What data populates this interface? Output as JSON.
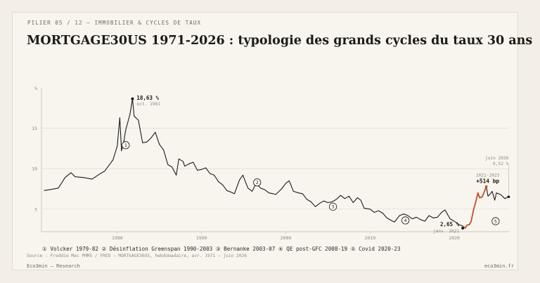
{
  "header": {
    "kicker": "PILIER 05 / 12 — IMMOBILIER & CYCLES DE TAUX",
    "title": "MORTGAGE30US 1971-2026 : typologie des grands cycles du taux 30 ans"
  },
  "legend_text": "① Volcker 1979-82 ② Désinflation Greenspan 1990-2003 ③ Bernanke 2003-07 ④ QE post-GFC 2008-19 ⑤ Covid 2020-23",
  "source": "Source : Freddie Mac PMMS / FRED — MORTGAGE30US, hebdomadaire, avr. 1971 – juin 2026",
  "footer": {
    "left": "Eco3min — Research",
    "right": "eco3min.fr"
  },
  "colors": {
    "line": "#1a1a1a",
    "highlight": "#c0502a",
    "grid": "#dcd6ca",
    "background": "#f8f5ee"
  },
  "chart_data": {
    "type": "line",
    "series": [
      {
        "x": [
          1971.3,
          1972.0,
          1973.0,
          1973.8,
          1974.5,
          1975.0,
          1976.0,
          1977.0,
          1978.0,
          1978.5,
          1979.0,
          1979.5,
          1980.0,
          1980.3,
          1980.5,
          1980.8,
          1981.0,
          1981.5,
          1981.8,
          1982.0,
          1982.5,
          1983.0,
          1983.5,
          1984.0,
          1984.5,
          1985.0,
          1985.5,
          1986.0,
          1986.5,
          1987.0,
          1987.3,
          1987.8,
          1988.0,
          1988.5,
          1989.0,
          1989.5,
          1990.0,
          1990.5,
          1991.0,
          1991.5,
          1992.0,
          1992.5,
          1993.0,
          1993.5,
          1993.9,
          1994.5,
          1994.9,
          1995.5,
          1996.0,
          1996.5,
          1997.0,
          1997.5,
          1998.0,
          1998.5,
          1998.8,
          1999.5,
          2000.0,
          2000.4,
          2000.9,
          2001.5,
          2002.0,
          2002.5,
          2003.0,
          2003.5,
          2004.0,
          2004.5,
          2005.0,
          2005.5,
          2006.0,
          2006.5,
          2007.0,
          2007.5,
          2008.0,
          2008.5,
          2008.9,
          2009.3,
          2010.0,
          2010.5,
          2011.0,
          2011.5,
          2012.0,
          2012.5,
          2012.9,
          2013.5,
          2014.0,
          2014.5,
          2015.0,
          2015.5,
          2016.0,
          2016.5,
          2017.0,
          2017.5,
          2018.0,
          2018.5,
          2018.9,
          2019.5,
          2020.0,
          2020.5,
          2021.0,
          2021.3,
          2021.5,
          2021.8,
          2022.0,
          2022.3,
          2022.5,
          2022.8,
          2023.0,
          2023.3,
          2023.5,
          2023.8,
          2024.0,
          2024.3,
          2024.5,
          2024.8,
          2025.0,
          2025.5,
          2026.0,
          2026.45
        ],
        "y": [
          7.3,
          7.4,
          7.6,
          8.9,
          9.5,
          9.0,
          8.9,
          8.7,
          9.4,
          9.7,
          10.4,
          11.1,
          12.8,
          16.3,
          12.2,
          13.5,
          14.8,
          16.7,
          18.63,
          16.5,
          16.0,
          13.2,
          13.3,
          13.8,
          14.5,
          13.0,
          12.3,
          10.5,
          10.2,
          9.2,
          11.2,
          10.9,
          10.3,
          10.6,
          10.8,
          9.8,
          9.9,
          10.1,
          9.4,
          9.2,
          8.4,
          8.0,
          7.3,
          7.1,
          6.9,
          8.6,
          9.2,
          7.6,
          7.2,
          8.2,
          7.6,
          7.4,
          7.0,
          6.9,
          6.8,
          7.5,
          8.2,
          8.5,
          7.2,
          7.0,
          6.9,
          6.2,
          5.9,
          5.3,
          5.7,
          6.0,
          5.8,
          5.9,
          6.2,
          6.7,
          6.3,
          6.6,
          5.8,
          6.4,
          6.1,
          5.1,
          5.0,
          4.6,
          4.8,
          4.5,
          3.9,
          3.6,
          3.4,
          4.2,
          4.4,
          4.2,
          3.8,
          4.0,
          3.7,
          3.5,
          4.2,
          3.9,
          4.0,
          4.6,
          4.9,
          3.8,
          3.5,
          3.1,
          2.9,
          2.65,
          3.0,
          3.1,
          3.5,
          5.0,
          5.7,
          7.0,
          6.4,
          6.5,
          7.0,
          7.79,
          6.6,
          6.9,
          7.2,
          6.1,
          7.0,
          6.8,
          6.3,
          6.52
        ]
      }
    ],
    "highlight_range": [
      2021.0,
      2023.8
    ],
    "xlim": [
      1971,
      2026.5
    ],
    "ylim": [
      2.2,
      20
    ],
    "xticks": [
      1980,
      1990,
      2000,
      2010,
      2020
    ],
    "xtick_labels": [
      "1980",
      "1990",
      "2000",
      "2010",
      "2020"
    ],
    "yticks": [
      5,
      10,
      15
    ],
    "ytick_labels": [
      "5",
      "10",
      "15"
    ],
    "grid": true,
    "annotations": [
      {
        "id": "peak",
        "x": 1981.8,
        "y": 18.63,
        "value": "18,63 %",
        "note": "oct. 1981"
      },
      {
        "id": "low",
        "x": 2021.0,
        "y": 2.65,
        "value": "2,65 %",
        "note": "janv. 2021"
      },
      {
        "id": "last",
        "x": 2026.45,
        "y": 6.52,
        "value": "6,52 %",
        "note": "juin 2026"
      },
      {
        "id": "hike",
        "x": 2023.8,
        "y": 7.79,
        "value": "+514 bp",
        "note": "2021-2023"
      }
    ],
    "cycle_markers": [
      {
        "label": "1",
        "x": 1981.0,
        "y": 12.9
      },
      {
        "label": "2",
        "x": 1996.6,
        "y": 8.3
      },
      {
        "label": "3",
        "x": 2005.6,
        "y": 5.3
      },
      {
        "label": "4",
        "x": 2014.2,
        "y": 3.6
      },
      {
        "label": "5",
        "x": 2024.9,
        "y": 3.5
      }
    ]
  }
}
